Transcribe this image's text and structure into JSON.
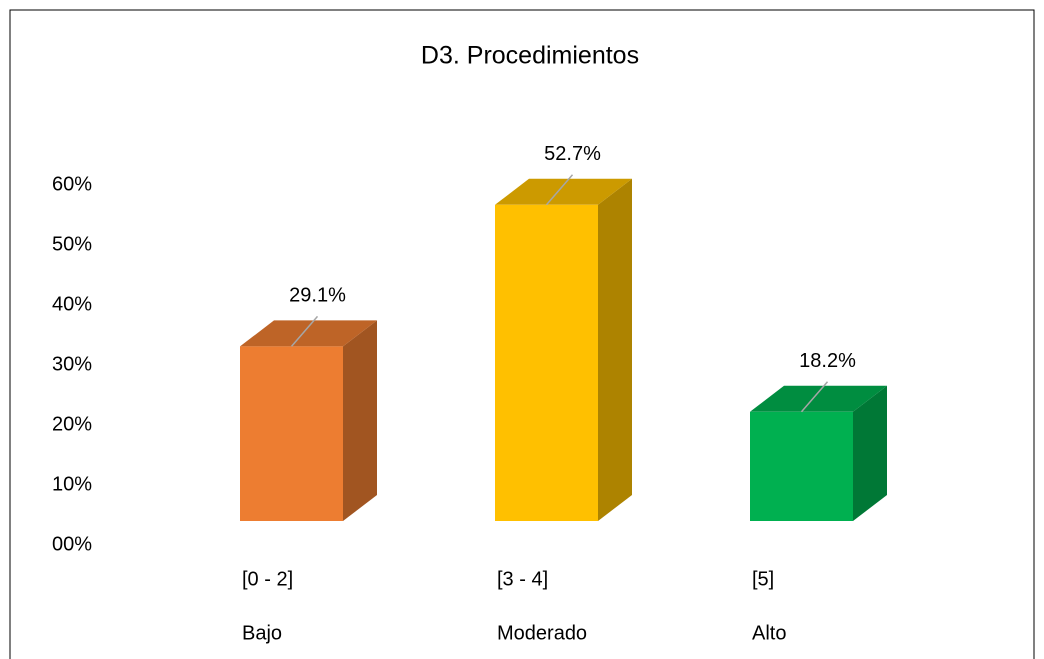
{
  "chart_data": {
    "type": "bar3d",
    "title": "D3. Procedimientos",
    "categories": [
      [
        "[0 - 2]",
        "Bajo"
      ],
      [
        "[3 - 4]",
        "Moderado"
      ],
      [
        "[5]",
        "Alto"
      ]
    ],
    "values": [
      29.1,
      52.7,
      18.2
    ],
    "value_labels": [
      "29.1%",
      "52.7%",
      "18.2%"
    ],
    "colors": [
      "#ed7d31",
      "#ffc000",
      "#00b050"
    ],
    "ylim": [
      0,
      60
    ],
    "yticks": [
      {
        "value": 0,
        "label": "00%"
      },
      {
        "value": 10,
        "label": "10%"
      },
      {
        "value": 20,
        "label": "20%"
      },
      {
        "value": 30,
        "label": "30%"
      },
      {
        "value": 40,
        "label": "40%"
      },
      {
        "value": 50,
        "label": "50%"
      },
      {
        "value": 60,
        "label": "60%"
      }
    ]
  }
}
